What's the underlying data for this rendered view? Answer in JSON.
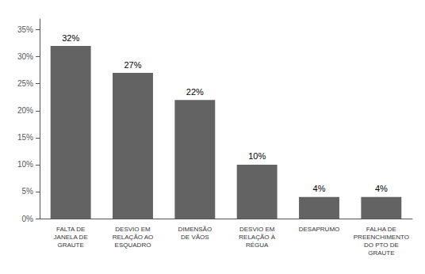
{
  "chart_data": {
    "type": "bar",
    "categories": [
      "FALTA DE\nJANELA DE\nGRAUTE",
      "DESVIO EM\nRELAÇÃO AO\nESQUADRO",
      "DIMENSÃO\nDE VÃOS",
      "DESVIO EM\nRELAÇÃO À\nRÉGUA",
      "DESAPRUMO",
      "FALHA DE\nPREENCHIMENTO\nDO PTO DE\nGRAUTE"
    ],
    "values": [
      32,
      27,
      22,
      10,
      4,
      4
    ],
    "value_labels": [
      "32%",
      "27%",
      "22%",
      "10%",
      "4%",
      "4%"
    ],
    "data_labels": true,
    "color": "#636363",
    "ylim": [
      0,
      37
    ],
    "yticks": [
      {
        "value": 0,
        "label": "0%"
      },
      {
        "value": 5,
        "label": "5%"
      },
      {
        "value": 10,
        "label": "10%"
      },
      {
        "value": 15,
        "label": "15%"
      },
      {
        "value": 20,
        "label": "20%"
      },
      {
        "value": 25,
        "label": "25%"
      },
      {
        "value": 30,
        "label": "30%"
      },
      {
        "value": 35,
        "label": "35%"
      }
    ],
    "grid": false
  }
}
